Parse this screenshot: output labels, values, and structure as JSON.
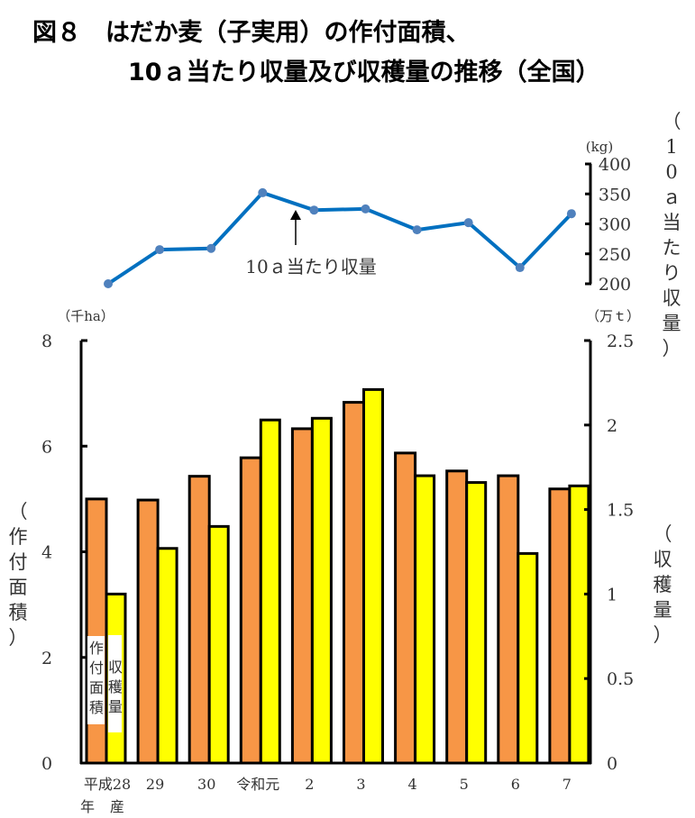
{
  "chart_data": [
    {
      "type": "line",
      "title_line1": "図８　はだか麦（子実用）の作付面積、",
      "title_line2": "10ａ当たり収量及び収穫量の推移（全国）",
      "categories": [
        "平成28年産",
        "29",
        "30",
        "令和元",
        "2",
        "3",
        "4",
        "5",
        "6",
        "7"
      ],
      "series": [
        {
          "name": "10ａ当たり収量",
          "values": [
            200,
            257,
            259,
            352,
            323,
            325,
            290,
            302,
            227,
            317
          ],
          "color": "#0070c0"
        }
      ],
      "y_unit": "(kg)",
      "ylabel": "（10ａ当たり収量）",
      "ylim": [
        200,
        400
      ],
      "yticks": [
        "400",
        "350",
        "300",
        "250",
        "200"
      ],
      "annotation": "10ａ当たり収量"
    },
    {
      "type": "bar",
      "categories": [
        "平成28年産",
        "29",
        "30",
        "令和元",
        "2",
        "3",
        "4",
        "5",
        "6",
        "7"
      ],
      "x_tick_labels": [
        "平成28",
        "29",
        "30",
        "令和元",
        "2",
        "3",
        "4",
        "5",
        "6",
        "7"
      ],
      "x_tick_sub": [
        "年",
        "産"
      ],
      "series": [
        {
          "name": "作付面積",
          "axis": "left",
          "color": "#f79646",
          "values": [
            5.0,
            4.98,
            5.43,
            5.78,
            6.33,
            6.83,
            5.87,
            5.53,
            5.44,
            5.19
          ]
        },
        {
          "name": "収穫量",
          "axis": "right",
          "color": "#ffff00",
          "values": [
            1.0,
            1.27,
            1.4,
            2.03,
            2.04,
            2.21,
            1.7,
            1.66,
            1.24,
            1.64
          ]
        }
      ],
      "left_axis": {
        "unit": "（千ha）",
        "label": "（作付面積）",
        "ylim": [
          0,
          8
        ],
        "ticks": [
          "0",
          "2",
          "4",
          "6",
          "8"
        ]
      },
      "right_axis": {
        "unit": "（万ｔ）",
        "label": "（収穫量）",
        "ylim": [
          0,
          2.5
        ],
        "ticks": [
          "0",
          "0.5",
          "1",
          "1.5",
          "2",
          "2.5"
        ]
      },
      "grid": false,
      "legend": "inside-bottom-left"
    }
  ]
}
